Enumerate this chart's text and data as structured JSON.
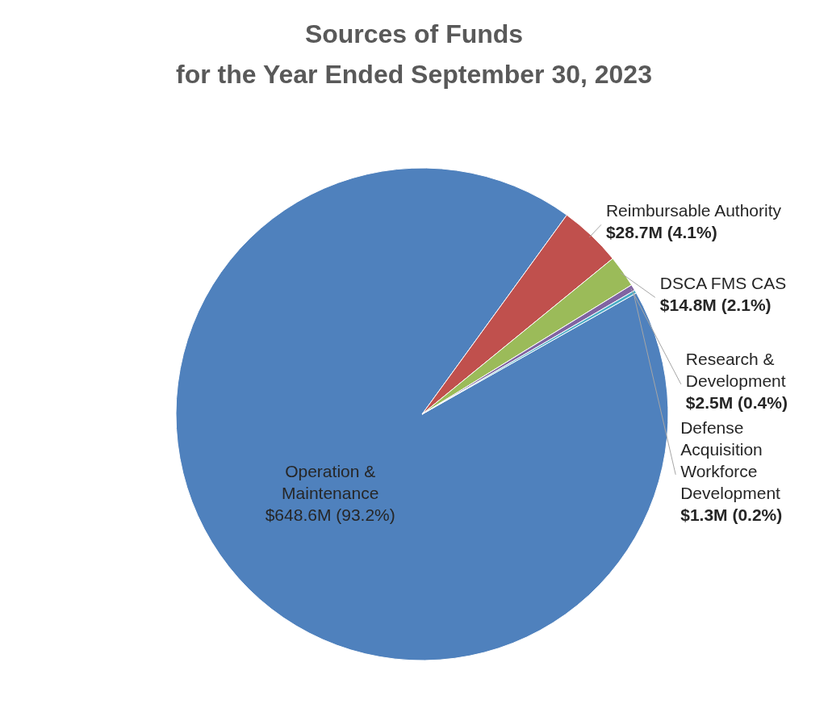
{
  "chart_data": {
    "type": "pie",
    "title": "Sources of Funds\nfor the Year Ended September 30, 2023",
    "categories": [
      "Operation & Maintenance",
      "Reimbursable Authority",
      "DSCA FMS CAS",
      "Research & Development",
      "Defense Acquisition Workforce Development"
    ],
    "values": [
      93.2,
      4.1,
      2.1,
      0.4,
      0.2
    ],
    "value_labels": [
      "$648.6M (93.2%)",
      "$28.7M (4.1%)",
      "$14.8M (2.1%)",
      "$2.5M (0.4%)",
      "$1.3M (0.2%)"
    ],
    "colors": [
      "#4f81bd",
      "#c0504d",
      "#9bbb59",
      "#8064a2",
      "#4bacc6"
    ],
    "legend": false
  }
}
